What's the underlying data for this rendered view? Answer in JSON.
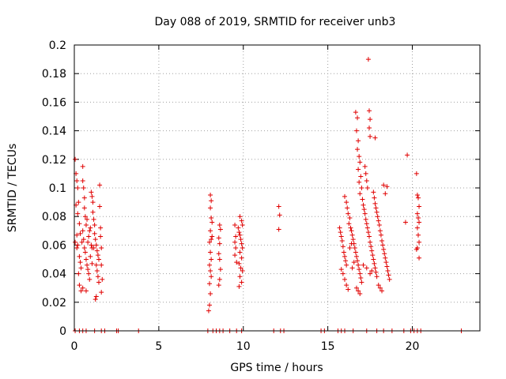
{
  "chart_data": {
    "type": "scatter",
    "title": "Day 088 of 2019, SRMTID for receiver unb3",
    "xlabel": "GPS time / hours",
    "ylabel": "SRMTID / TECUs",
    "xlim": [
      0,
      24
    ],
    "ylim": [
      0,
      0.2
    ],
    "grid": true,
    "marker": "+",
    "color": "#e00000",
    "x_ticks": [
      "0",
      "5",
      "10",
      "15",
      "20"
    ],
    "y_ticks": [
      "0",
      "0.02",
      "0.04",
      "0.06",
      "0.08",
      "0.1",
      "0.12",
      "0.14",
      "0.16",
      "0.18",
      "0.2"
    ],
    "series": [
      {
        "name": "SRMTID",
        "points": [
          [
            0.05,
            0.12
          ],
          [
            0.1,
            0.11
          ],
          [
            0.15,
            0.105
          ],
          [
            0.2,
            0.1
          ],
          [
            0.1,
            0.088
          ],
          [
            0.2,
            0.082
          ],
          [
            0.25,
            0.09
          ],
          [
            0.3,
            0.075
          ],
          [
            0.35,
            0.068
          ],
          [
            0.05,
            0.062
          ],
          [
            0.15,
            0.058
          ],
          [
            0.2,
            0.06
          ],
          [
            0.3,
            0.052
          ],
          [
            0.35,
            0.048
          ],
          [
            0.4,
            0.044
          ],
          [
            0.25,
            0.04
          ],
          [
            0.3,
            0.032
          ],
          [
            0.4,
            0.028
          ],
          [
            0.5,
            0.115
          ],
          [
            0.5,
            0.105
          ],
          [
            0.55,
            0.1
          ],
          [
            0.6,
            0.093
          ],
          [
            0.6,
            0.086
          ],
          [
            0.65,
            0.08
          ],
          [
            0.7,
            0.074
          ],
          [
            0.5,
            0.07
          ],
          [
            0.55,
            0.064
          ],
          [
            0.6,
            0.058
          ],
          [
            0.65,
            0.055
          ],
          [
            0.7,
            0.05
          ],
          [
            0.75,
            0.046
          ],
          [
            0.8,
            0.043
          ],
          [
            0.85,
            0.04
          ],
          [
            0.9,
            0.036
          ],
          [
            0.5,
            0.03
          ],
          [
            0.7,
            0.028
          ],
          [
            0.8,
            0.062
          ],
          [
            0.85,
            0.066
          ],
          [
            0.9,
            0.07
          ],
          [
            0.95,
            0.072
          ],
          [
            1.0,
            0.06
          ],
          [
            1.05,
            0.058
          ],
          [
            1.0,
            0.097
          ],
          [
            1.05,
            0.094
          ],
          [
            1.1,
            0.09
          ],
          [
            1.1,
            0.083
          ],
          [
            1.15,
            0.078
          ],
          [
            1.2,
            0.074
          ],
          [
            1.2,
            0.068
          ],
          [
            1.25,
            0.064
          ],
          [
            1.3,
            0.06
          ],
          [
            1.35,
            0.056
          ],
          [
            1.4,
            0.053
          ],
          [
            1.45,
            0.05
          ],
          [
            1.3,
            0.046
          ],
          [
            1.35,
            0.042
          ],
          [
            1.4,
            0.038
          ],
          [
            1.45,
            0.034
          ],
          [
            1.25,
            0.022
          ],
          [
            1.3,
            0.024
          ],
          [
            1.5,
            0.102
          ],
          [
            1.5,
            0.087
          ],
          [
            1.55,
            0.072
          ],
          [
            1.55,
            0.066
          ],
          [
            1.6,
            0.058
          ],
          [
            1.6,
            0.046
          ],
          [
            1.65,
            0.036
          ],
          [
            1.6,
            0.027
          ],
          [
            0.15,
            0.067
          ],
          [
            0.45,
            0.062
          ],
          [
            0.75,
            0.078
          ],
          [
            0.95,
            0.052
          ],
          [
            1.15,
            0.058
          ],
          [
            1.05,
            0.047
          ],
          [
            8.05,
            0.095
          ],
          [
            8.1,
            0.091
          ],
          [
            8.05,
            0.086
          ],
          [
            8.1,
            0.079
          ],
          [
            8.05,
            0.07
          ],
          [
            8.1,
            0.064
          ],
          [
            8.0,
            0.062
          ],
          [
            8.05,
            0.055
          ],
          [
            8.1,
            0.05
          ],
          [
            8.0,
            0.046
          ],
          [
            8.05,
            0.042
          ],
          [
            8.1,
            0.038
          ],
          [
            8.0,
            0.033
          ],
          [
            8.05,
            0.026
          ],
          [
            8.0,
            0.018
          ],
          [
            7.95,
            0.014
          ],
          [
            8.15,
            0.076
          ],
          [
            8.15,
            0.066
          ],
          [
            8.6,
            0.074
          ],
          [
            8.65,
            0.071
          ],
          [
            8.55,
            0.065
          ],
          [
            8.6,
            0.061
          ],
          [
            8.55,
            0.054
          ],
          [
            8.6,
            0.05
          ],
          [
            8.65,
            0.043
          ],
          [
            8.6,
            0.036
          ],
          [
            8.55,
            0.032
          ],
          [
            9.5,
            0.074
          ],
          [
            9.55,
            0.066
          ],
          [
            9.5,
            0.062
          ],
          [
            9.55,
            0.058
          ],
          [
            9.5,
            0.053
          ],
          [
            9.6,
            0.048
          ],
          [
            9.7,
            0.072
          ],
          [
            9.75,
            0.069
          ],
          [
            9.8,
            0.067
          ],
          [
            9.85,
            0.064
          ],
          [
            9.9,
            0.061
          ],
          [
            9.95,
            0.058
          ],
          [
            9.8,
            0.055
          ],
          [
            9.9,
            0.051
          ],
          [
            9.75,
            0.047
          ],
          [
            9.85,
            0.044
          ],
          [
            9.95,
            0.042
          ],
          [
            9.8,
            0.038
          ],
          [
            9.9,
            0.034
          ],
          [
            9.75,
            0.031
          ],
          [
            9.8,
            0.08
          ],
          [
            9.9,
            0.077
          ],
          [
            9.95,
            0.074
          ],
          [
            12.1,
            0.087
          ],
          [
            12.15,
            0.081
          ],
          [
            12.1,
            0.071
          ],
          [
            15.7,
            0.072
          ],
          [
            15.75,
            0.069
          ],
          [
            15.8,
            0.066
          ],
          [
            15.85,
            0.063
          ],
          [
            15.9,
            0.059
          ],
          [
            15.95,
            0.055
          ],
          [
            16.0,
            0.052
          ],
          [
            16.05,
            0.049
          ],
          [
            16.1,
            0.046
          ],
          [
            15.8,
            0.043
          ],
          [
            15.9,
            0.04
          ],
          [
            16.0,
            0.036
          ],
          [
            16.1,
            0.032
          ],
          [
            16.2,
            0.029
          ],
          [
            16.0,
            0.094
          ],
          [
            16.1,
            0.09
          ],
          [
            16.15,
            0.086
          ],
          [
            16.2,
            0.082
          ],
          [
            16.3,
            0.079
          ],
          [
            16.25,
            0.075
          ],
          [
            16.35,
            0.072
          ],
          [
            16.4,
            0.07
          ],
          [
            16.45,
            0.067
          ],
          [
            16.5,
            0.064
          ],
          [
            16.55,
            0.061
          ],
          [
            16.6,
            0.058
          ],
          [
            16.65,
            0.055
          ],
          [
            16.7,
            0.052
          ],
          [
            16.75,
            0.049
          ],
          [
            16.8,
            0.046
          ],
          [
            16.85,
            0.043
          ],
          [
            16.9,
            0.04
          ],
          [
            16.95,
            0.037
          ],
          [
            17.0,
            0.034
          ],
          [
            16.7,
            0.03
          ],
          [
            16.8,
            0.028
          ],
          [
            16.9,
            0.026
          ],
          [
            16.65,
            0.153
          ],
          [
            16.75,
            0.149
          ],
          [
            16.7,
            0.14
          ],
          [
            16.8,
            0.133
          ],
          [
            16.75,
            0.127
          ],
          [
            16.85,
            0.122
          ],
          [
            16.9,
            0.118
          ],
          [
            16.8,
            0.113
          ],
          [
            16.95,
            0.108
          ],
          [
            16.85,
            0.104
          ],
          [
            17.0,
            0.1
          ],
          [
            16.9,
            0.096
          ],
          [
            17.05,
            0.092
          ],
          [
            17.1,
            0.088
          ],
          [
            17.15,
            0.085
          ],
          [
            17.2,
            0.082
          ],
          [
            17.25,
            0.078
          ],
          [
            17.3,
            0.075
          ],
          [
            17.35,
            0.072
          ],
          [
            17.4,
            0.069
          ],
          [
            17.45,
            0.066
          ],
          [
            17.5,
            0.062
          ],
          [
            17.55,
            0.059
          ],
          [
            17.6,
            0.056
          ],
          [
            17.65,
            0.053
          ],
          [
            17.7,
            0.05
          ],
          [
            17.75,
            0.047
          ],
          [
            17.8,
            0.044
          ],
          [
            17.85,
            0.041
          ],
          [
            17.9,
            0.038
          ],
          [
            17.2,
            0.115
          ],
          [
            17.25,
            0.11
          ],
          [
            17.3,
            0.105
          ],
          [
            17.35,
            0.1
          ],
          [
            17.45,
            0.154
          ],
          [
            17.5,
            0.148
          ],
          [
            17.45,
            0.142
          ],
          [
            17.5,
            0.136
          ],
          [
            17.4,
            0.19
          ],
          [
            17.8,
            0.135
          ],
          [
            17.7,
            0.097
          ],
          [
            17.75,
            0.093
          ],
          [
            17.8,
            0.089
          ],
          [
            17.85,
            0.086
          ],
          [
            17.9,
            0.083
          ],
          [
            17.95,
            0.08
          ],
          [
            18.0,
            0.077
          ],
          [
            18.05,
            0.074
          ],
          [
            18.1,
            0.07
          ],
          [
            18.15,
            0.067
          ],
          [
            18.2,
            0.063
          ],
          [
            18.25,
            0.06
          ],
          [
            18.3,
            0.057
          ],
          [
            18.35,
            0.054
          ],
          [
            18.4,
            0.051
          ],
          [
            18.45,
            0.048
          ],
          [
            18.5,
            0.045
          ],
          [
            18.55,
            0.042
          ],
          [
            18.6,
            0.039
          ],
          [
            18.65,
            0.036
          ],
          [
            18.3,
            0.102
          ],
          [
            18.4,
            0.096
          ],
          [
            18.5,
            0.101
          ],
          [
            18.0,
            0.032
          ],
          [
            18.1,
            0.03
          ],
          [
            18.2,
            0.028
          ],
          [
            17.6,
            0.042
          ],
          [
            17.5,
            0.04
          ],
          [
            17.3,
            0.044
          ],
          [
            17.1,
            0.046
          ],
          [
            16.3,
            0.058
          ],
          [
            16.4,
            0.061
          ],
          [
            16.55,
            0.048
          ],
          [
            16.45,
            0.044
          ],
          [
            19.7,
            0.123
          ],
          [
            19.6,
            0.076
          ],
          [
            20.25,
            0.11
          ],
          [
            20.3,
            0.095
          ],
          [
            20.35,
            0.093
          ],
          [
            20.4,
            0.087
          ],
          [
            20.3,
            0.082
          ],
          [
            20.35,
            0.079
          ],
          [
            20.4,
            0.076
          ],
          [
            20.3,
            0.072
          ],
          [
            20.35,
            0.067
          ],
          [
            20.4,
            0.062
          ],
          [
            20.3,
            0.058
          ],
          [
            20.25,
            0.057
          ],
          [
            20.4,
            0.051
          ],
          [
            0.05,
            0
          ],
          [
            0.3,
            0
          ],
          [
            0.5,
            0
          ],
          [
            0.7,
            0
          ],
          [
            1.2,
            0
          ],
          [
            1.6,
            0
          ],
          [
            1.8,
            0
          ],
          [
            2.5,
            0
          ],
          [
            2.6,
            0
          ],
          [
            3.8,
            0
          ],
          [
            7.9,
            0
          ],
          [
            8.2,
            0
          ],
          [
            8.4,
            0
          ],
          [
            8.6,
            0
          ],
          [
            8.8,
            0
          ],
          [
            9.2,
            0
          ],
          [
            9.6,
            0
          ],
          [
            9.9,
            0
          ],
          [
            11.8,
            0
          ],
          [
            12.2,
            0
          ],
          [
            12.4,
            0
          ],
          [
            14.6,
            0
          ],
          [
            14.8,
            0
          ],
          [
            15.6,
            0
          ],
          [
            15.8,
            0
          ],
          [
            16.0,
            0
          ],
          [
            16.5,
            0
          ],
          [
            17.3,
            0
          ],
          [
            17.9,
            0
          ],
          [
            18.3,
            0
          ],
          [
            18.8,
            0
          ],
          [
            19.5,
            0
          ],
          [
            19.9,
            0
          ],
          [
            20.1,
            0
          ],
          [
            20.3,
            0
          ],
          [
            20.5,
            0
          ],
          [
            22.9,
            0
          ]
        ]
      }
    ]
  }
}
